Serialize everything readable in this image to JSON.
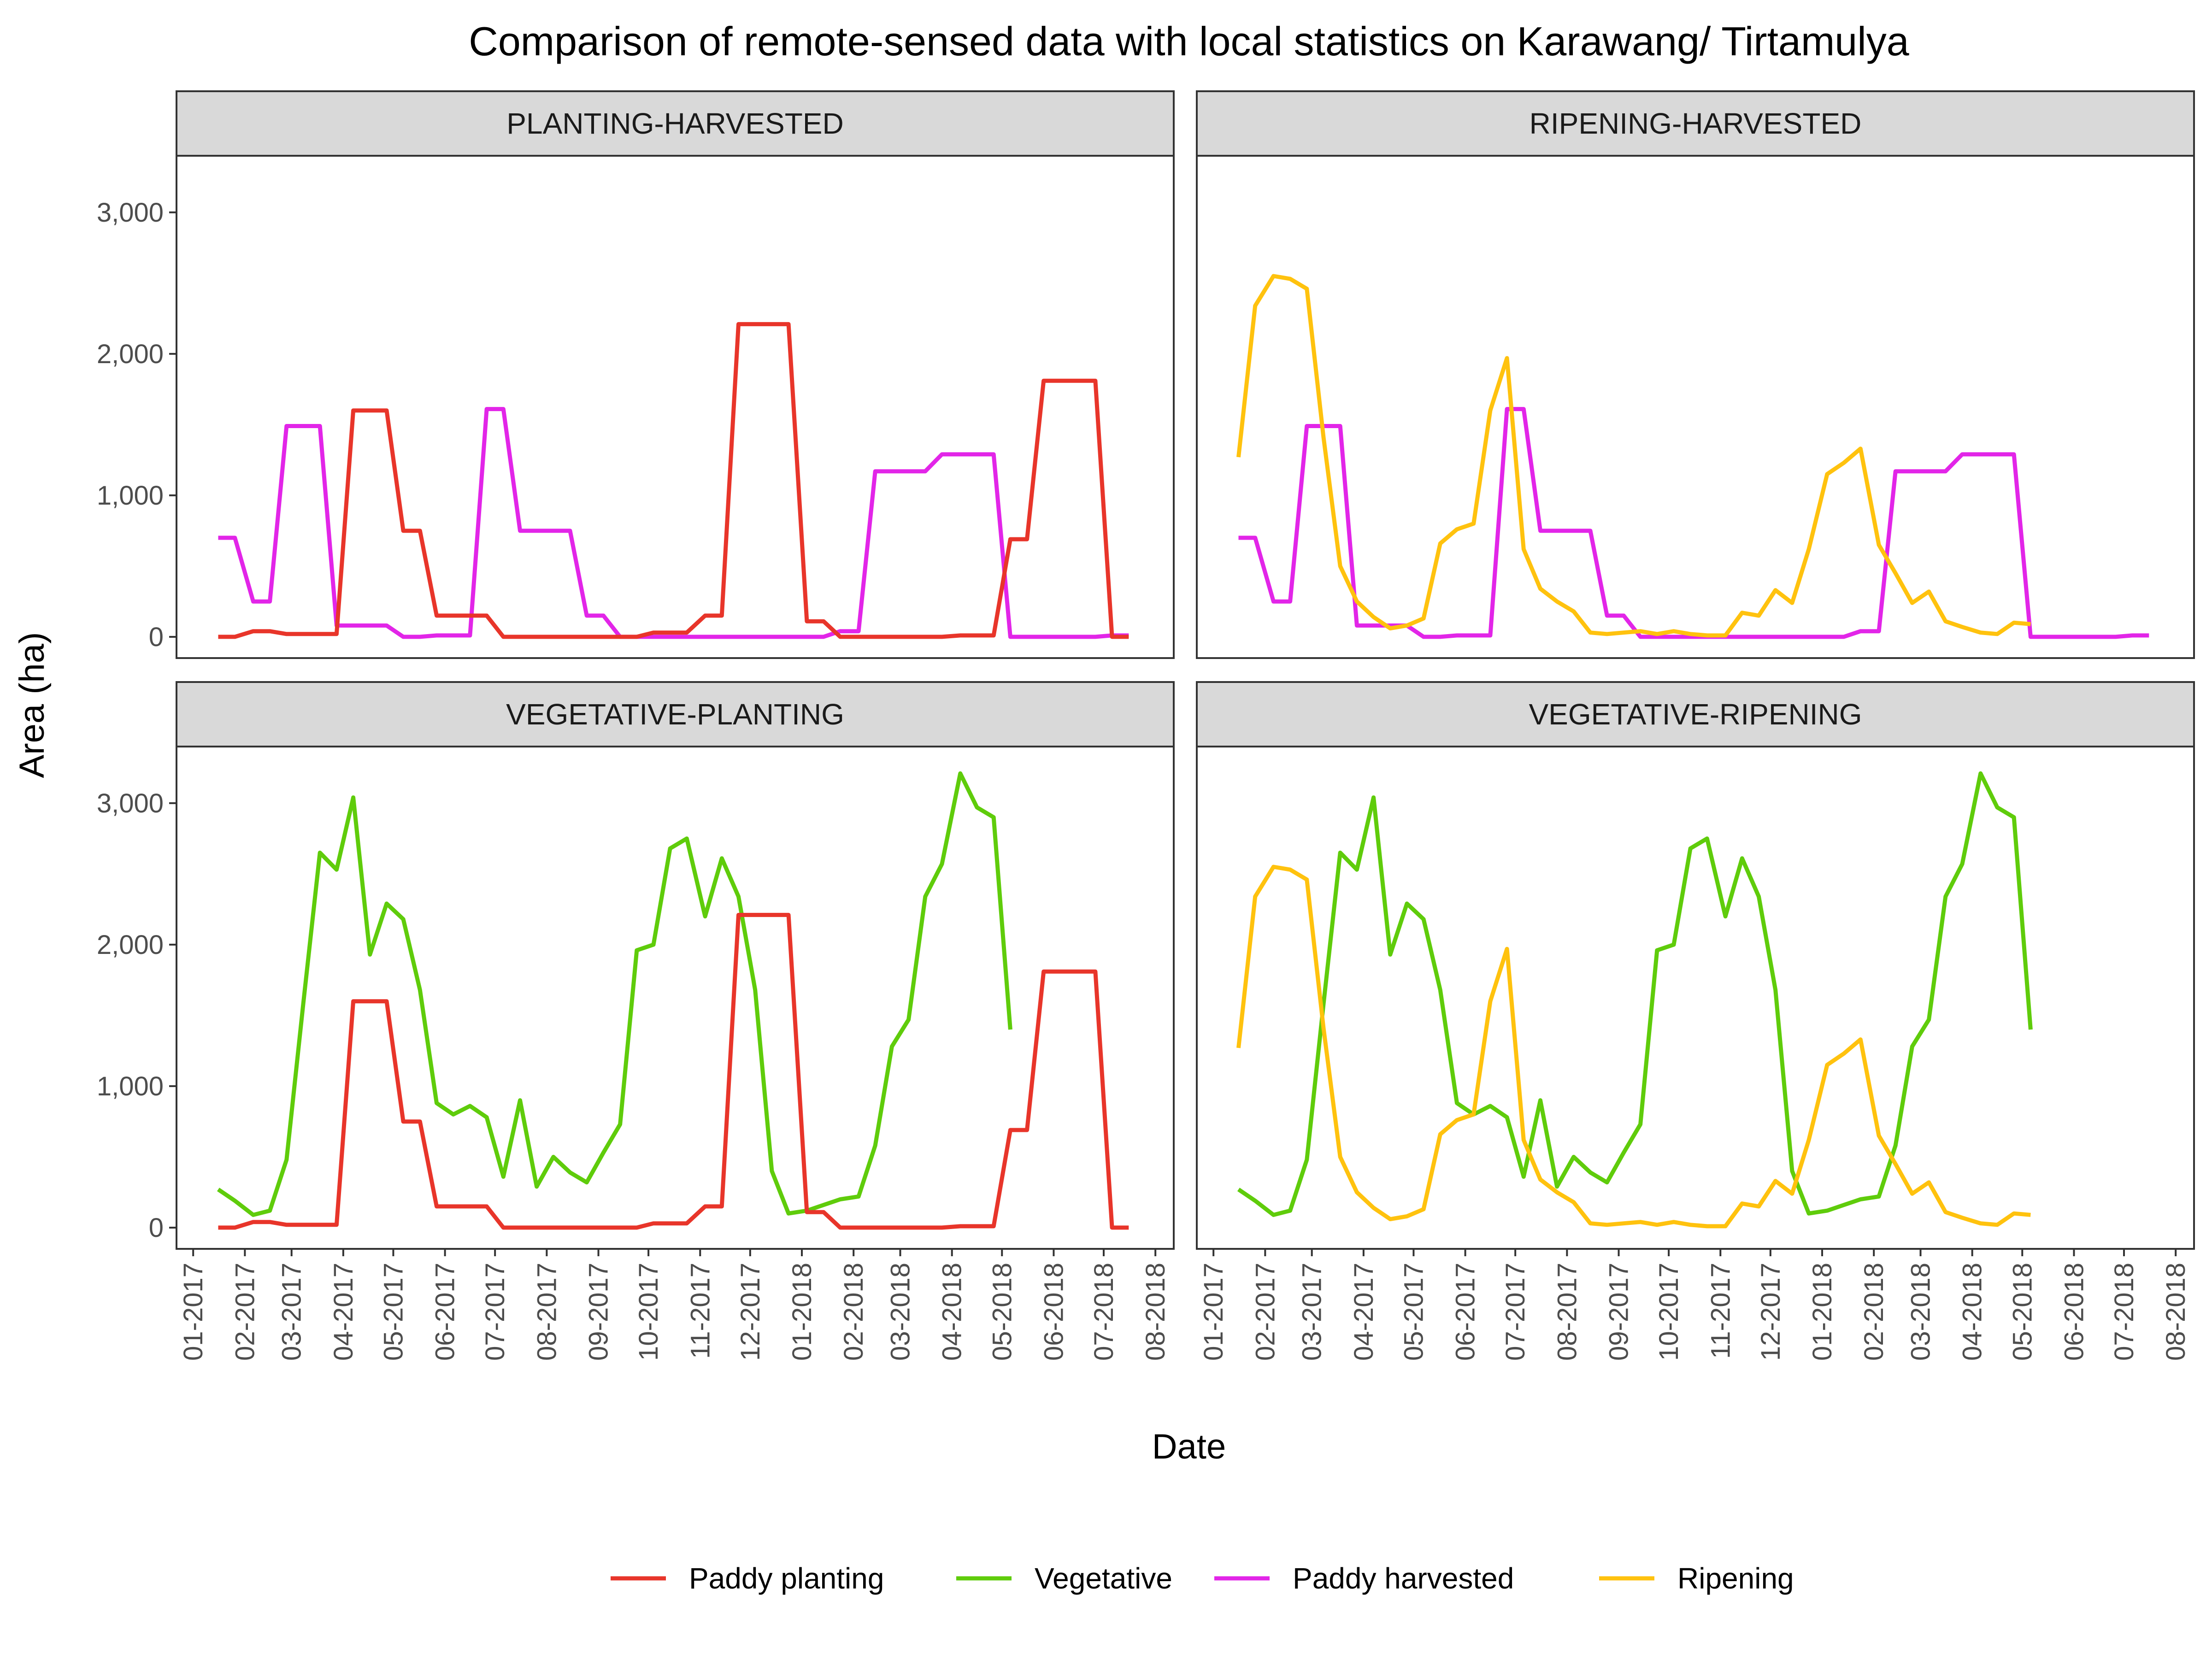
{
  "chart_data": {
    "type": "line",
    "title": "Comparison of remote-sensed data with local statistics on Karawang/ Tirtamulya",
    "xlabel": "Date",
    "ylabel": "Area (ha)",
    "ylim": [
      -150,
      3400
    ],
    "y_ticks": [
      0,
      1000,
      2000,
      3000
    ],
    "y_tick_labels": [
      "0",
      "1,000",
      "2,000",
      "3,000"
    ],
    "x_ticks": [
      "01-2017",
      "02-2017",
      "03-2017",
      "04-2017",
      "05-2017",
      "06-2017",
      "07-2017",
      "08-2017",
      "09-2017",
      "10-2017",
      "11-2017",
      "12-2017",
      "01-2018",
      "02-2018",
      "03-2018",
      "04-2018",
      "05-2018",
      "06-2018",
      "07-2018",
      "08-2018"
    ],
    "legend_position": "bottom",
    "grid": false,
    "series_colors": {
      "planting": "#E8352A",
      "vegetative": "#5FCC0B",
      "harvested": "#E225E8",
      "ripening": "#FFC20E"
    },
    "legend": [
      {
        "key": "planting",
        "label": "Paddy planting"
      },
      {
        "key": "vegetative",
        "label": "Vegetative"
      },
      {
        "key": "harvested",
        "label": "Paddy harvested"
      },
      {
        "key": "ripening",
        "label": "Ripening"
      }
    ],
    "panels": [
      {
        "strip": "PLANTING-HARVESTED",
        "series": [
          "harvested",
          "planting"
        ]
      },
      {
        "strip": "RIPENING-HARVESTED",
        "series": [
          "harvested",
          "ripening"
        ]
      },
      {
        "strip": "VEGETATIVE-PLANTING",
        "series": [
          "vegetative",
          "planting"
        ]
      },
      {
        "strip": "VEGETATIVE-RIPENING",
        "series": [
          "vegetative",
          "ripening"
        ]
      }
    ],
    "series": {
      "planting": {
        "name": "Paddy planting",
        "points": [
          [
            "2017-01-16",
            0
          ],
          [
            "2017-01-26",
            0
          ],
          [
            "2017-02-06",
            40
          ],
          [
            "2017-02-16",
            40
          ],
          [
            "2017-02-26",
            20
          ],
          [
            "2017-03-08",
            20
          ],
          [
            "2017-03-18",
            20
          ],
          [
            "2017-03-28",
            20
          ],
          [
            "2017-04-07",
            1600
          ],
          [
            "2017-04-17",
            1600
          ],
          [
            "2017-04-27",
            1600
          ],
          [
            "2017-05-07",
            750
          ],
          [
            "2017-05-17",
            750
          ],
          [
            "2017-05-27",
            150
          ],
          [
            "2017-06-06",
            150
          ],
          [
            "2017-06-16",
            150
          ],
          [
            "2017-06-26",
            150
          ],
          [
            "2017-07-06",
            0
          ],
          [
            "2017-07-16",
            0
          ],
          [
            "2017-07-26",
            0
          ],
          [
            "2017-08-05",
            0
          ],
          [
            "2017-08-15",
            0
          ],
          [
            "2017-08-25",
            0
          ],
          [
            "2017-09-04",
            0
          ],
          [
            "2017-09-14",
            0
          ],
          [
            "2017-09-24",
            0
          ],
          [
            "2017-10-04",
            30
          ],
          [
            "2017-10-14",
            30
          ],
          [
            "2017-10-24",
            30
          ],
          [
            "2017-11-04",
            150
          ],
          [
            "2017-11-14",
            150
          ],
          [
            "2017-11-24",
            2210
          ],
          [
            "2017-12-04",
            2210
          ],
          [
            "2017-12-14",
            2210
          ],
          [
            "2017-12-24",
            2210
          ],
          [
            "2018-01-04",
            110
          ],
          [
            "2018-01-14",
            110
          ],
          [
            "2018-01-24",
            0
          ],
          [
            "2018-02-04",
            0
          ],
          [
            "2018-02-14",
            0
          ],
          [
            "2018-02-24",
            0
          ],
          [
            "2018-03-06",
            0
          ],
          [
            "2018-03-16",
            0
          ],
          [
            "2018-03-26",
            0
          ],
          [
            "2018-04-06",
            10
          ],
          [
            "2018-04-16",
            10
          ],
          [
            "2018-04-26",
            10
          ],
          [
            "2018-05-06",
            690
          ],
          [
            "2018-05-16",
            690
          ],
          [
            "2018-05-26",
            1810
          ],
          [
            "2018-06-06",
            1810
          ],
          [
            "2018-06-16",
            1810
          ],
          [
            "2018-06-26",
            1810
          ],
          [
            "2018-07-06",
            0
          ],
          [
            "2018-07-16",
            0
          ]
        ]
      },
      "harvested": {
        "name": "Paddy harvested",
        "points": [
          [
            "2017-01-16",
            700
          ],
          [
            "2017-01-26",
            700
          ],
          [
            "2017-02-06",
            250
          ],
          [
            "2017-02-16",
            250
          ],
          [
            "2017-02-26",
            1490
          ],
          [
            "2017-03-08",
            1490
          ],
          [
            "2017-03-18",
            1490
          ],
          [
            "2017-03-28",
            80
          ],
          [
            "2017-04-07",
            80
          ],
          [
            "2017-04-17",
            80
          ],
          [
            "2017-04-27",
            80
          ],
          [
            "2017-05-07",
            0
          ],
          [
            "2017-05-17",
            0
          ],
          [
            "2017-05-27",
            10
          ],
          [
            "2017-06-06",
            10
          ],
          [
            "2017-06-16",
            10
          ],
          [
            "2017-06-26",
            1610
          ],
          [
            "2017-07-06",
            1610
          ],
          [
            "2017-07-16",
            750
          ],
          [
            "2017-07-26",
            750
          ],
          [
            "2017-08-05",
            750
          ],
          [
            "2017-08-15",
            750
          ],
          [
            "2017-08-25",
            150
          ],
          [
            "2017-09-04",
            150
          ],
          [
            "2017-09-14",
            0
          ],
          [
            "2017-09-24",
            0
          ],
          [
            "2017-10-04",
            0
          ],
          [
            "2017-10-14",
            0
          ],
          [
            "2017-10-24",
            0
          ],
          [
            "2017-11-04",
            0
          ],
          [
            "2017-11-14",
            0
          ],
          [
            "2017-11-24",
            0
          ],
          [
            "2017-12-04",
            0
          ],
          [
            "2017-12-14",
            0
          ],
          [
            "2017-12-24",
            0
          ],
          [
            "2018-01-04",
            0
          ],
          [
            "2018-01-14",
            0
          ],
          [
            "2018-01-24",
            40
          ],
          [
            "2018-02-04",
            40
          ],
          [
            "2018-02-14",
            1170
          ],
          [
            "2018-02-24",
            1170
          ],
          [
            "2018-03-06",
            1170
          ],
          [
            "2018-03-16",
            1170
          ],
          [
            "2018-03-26",
            1290
          ],
          [
            "2018-04-06",
            1290
          ],
          [
            "2018-04-16",
            1290
          ],
          [
            "2018-04-26",
            1290
          ],
          [
            "2018-05-06",
            0
          ],
          [
            "2018-05-16",
            0
          ],
          [
            "2018-05-26",
            0
          ],
          [
            "2018-06-06",
            0
          ],
          [
            "2018-06-16",
            0
          ],
          [
            "2018-06-26",
            0
          ],
          [
            "2018-07-06",
            10
          ],
          [
            "2018-07-16",
            10
          ]
        ]
      },
      "vegetative": {
        "name": "Vegetative",
        "points": [
          [
            "2017-01-16",
            270
          ],
          [
            "2017-01-26",
            190
          ],
          [
            "2017-02-06",
            90
          ],
          [
            "2017-02-16",
            120
          ],
          [
            "2017-02-26",
            480
          ],
          [
            "2017-03-08",
            1580
          ],
          [
            "2017-03-18",
            2650
          ],
          [
            "2017-03-28",
            2530
          ],
          [
            "2017-04-07",
            3040
          ],
          [
            "2017-04-17",
            1930
          ],
          [
            "2017-04-27",
            2290
          ],
          [
            "2017-05-07",
            2180
          ],
          [
            "2017-05-17",
            1680
          ],
          [
            "2017-05-27",
            880
          ],
          [
            "2017-06-06",
            800
          ],
          [
            "2017-06-16",
            860
          ],
          [
            "2017-06-26",
            780
          ],
          [
            "2017-07-06",
            360
          ],
          [
            "2017-07-16",
            900
          ],
          [
            "2017-07-26",
            290
          ],
          [
            "2017-08-05",
            500
          ],
          [
            "2017-08-15",
            390
          ],
          [
            "2017-08-25",
            320
          ],
          [
            "2017-09-04",
            530
          ],
          [
            "2017-09-14",
            730
          ],
          [
            "2017-09-24",
            1960
          ],
          [
            "2017-10-04",
            2000
          ],
          [
            "2017-10-14",
            2680
          ],
          [
            "2017-10-24",
            2750
          ],
          [
            "2017-11-04",
            2200
          ],
          [
            "2017-11-14",
            2610
          ],
          [
            "2017-11-24",
            2340
          ],
          [
            "2017-12-04",
            1680
          ],
          [
            "2017-12-14",
            400
          ],
          [
            "2017-12-24",
            100
          ],
          [
            "2018-01-04",
            120
          ],
          [
            "2018-01-14",
            160
          ],
          [
            "2018-01-24",
            200
          ],
          [
            "2018-02-04",
            220
          ],
          [
            "2018-02-14",
            580
          ],
          [
            "2018-02-24",
            1280
          ],
          [
            "2018-03-06",
            1470
          ],
          [
            "2018-03-16",
            2340
          ],
          [
            "2018-03-26",
            2570
          ],
          [
            "2018-04-06",
            3210
          ],
          [
            "2018-04-16",
            2970
          ],
          [
            "2018-04-26",
            2900
          ],
          [
            "2018-05-06",
            1400
          ]
        ]
      },
      "ripening": {
        "name": "Ripening",
        "points": [
          [
            "2017-01-16",
            1270
          ],
          [
            "2017-01-26",
            2340
          ],
          [
            "2017-02-06",
            2550
          ],
          [
            "2017-02-16",
            2530
          ],
          [
            "2017-02-26",
            2460
          ],
          [
            "2017-03-08",
            1410
          ],
          [
            "2017-03-18",
            500
          ],
          [
            "2017-03-28",
            250
          ],
          [
            "2017-04-07",
            140
          ],
          [
            "2017-04-17",
            60
          ],
          [
            "2017-04-27",
            80
          ],
          [
            "2017-05-07",
            130
          ],
          [
            "2017-05-17",
            660
          ],
          [
            "2017-05-27",
            760
          ],
          [
            "2017-06-06",
            800
          ],
          [
            "2017-06-16",
            1600
          ],
          [
            "2017-06-26",
            1970
          ],
          [
            "2017-07-06",
            620
          ],
          [
            "2017-07-16",
            340
          ],
          [
            "2017-07-26",
            250
          ],
          [
            "2017-08-05",
            180
          ],
          [
            "2017-08-15",
            30
          ],
          [
            "2017-08-25",
            20
          ],
          [
            "2017-09-04",
            30
          ],
          [
            "2017-09-14",
            40
          ],
          [
            "2017-09-24",
            20
          ],
          [
            "2017-10-04",
            40
          ],
          [
            "2017-10-14",
            20
          ],
          [
            "2017-10-24",
            10
          ],
          [
            "2017-11-04",
            10
          ],
          [
            "2017-11-14",
            170
          ],
          [
            "2017-11-24",
            150
          ],
          [
            "2017-12-04",
            330
          ],
          [
            "2017-12-14",
            240
          ],
          [
            "2017-12-24",
            620
          ],
          [
            "2018-01-04",
            1150
          ],
          [
            "2018-01-14",
            1230
          ],
          [
            "2018-01-24",
            1330
          ],
          [
            "2018-02-04",
            650
          ],
          [
            "2018-02-14",
            450
          ],
          [
            "2018-02-24",
            240
          ],
          [
            "2018-03-06",
            320
          ],
          [
            "2018-03-16",
            110
          ],
          [
            "2018-03-26",
            70
          ],
          [
            "2018-04-06",
            30
          ],
          [
            "2018-04-16",
            20
          ],
          [
            "2018-04-26",
            100
          ],
          [
            "2018-05-06",
            90
          ]
        ]
      }
    }
  }
}
